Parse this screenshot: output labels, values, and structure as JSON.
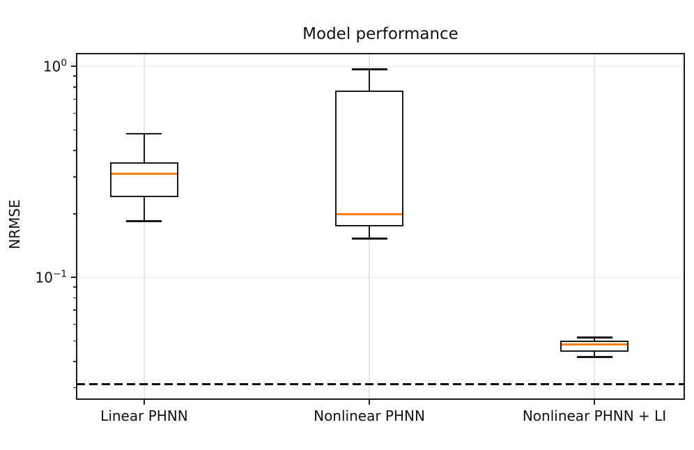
{
  "chart_data": {
    "type": "boxplot",
    "title": "Model performance",
    "ylabel": "NRMSE",
    "yscale": "log",
    "ylim": [
      0.0265,
      1.15
    ],
    "grid": true,
    "legend": "none",
    "categories": [
      "Linear PHNN",
      "Nonlinear PHNN",
      "Nonlinear PHNN + LI"
    ],
    "yticks": [
      {
        "value": 1,
        "base": "10",
        "exponent": "0"
      },
      {
        "value": 0.1,
        "base": "10",
        "exponent": "−1"
      }
    ],
    "boxes": [
      {
        "label": "Linear PHNN",
        "whisker_low": 0.185,
        "q1": 0.24,
        "median": 0.31,
        "q3": 0.35,
        "whisker_high": 0.48
      },
      {
        "label": "Nonlinear PHNN",
        "whisker_low": 0.153,
        "q1": 0.175,
        "median": 0.2,
        "q3": 0.77,
        "whisker_high": 0.97
      },
      {
        "label": "Nonlinear PHNN + LI",
        "whisker_low": 0.042,
        "q1": 0.0445,
        "median": 0.048,
        "q3": 0.05,
        "whisker_high": 0.052
      }
    ],
    "reference_line": {
      "value": 0.0313,
      "style": "dashed",
      "color": "#000000"
    },
    "colors": {
      "median": "#ff7f0e",
      "box_edge": "#1a1a1a",
      "whisker": "#161616",
      "grid": "#e6e6e6",
      "spine": "#1a1a1a",
      "background": "#ffffff"
    }
  }
}
